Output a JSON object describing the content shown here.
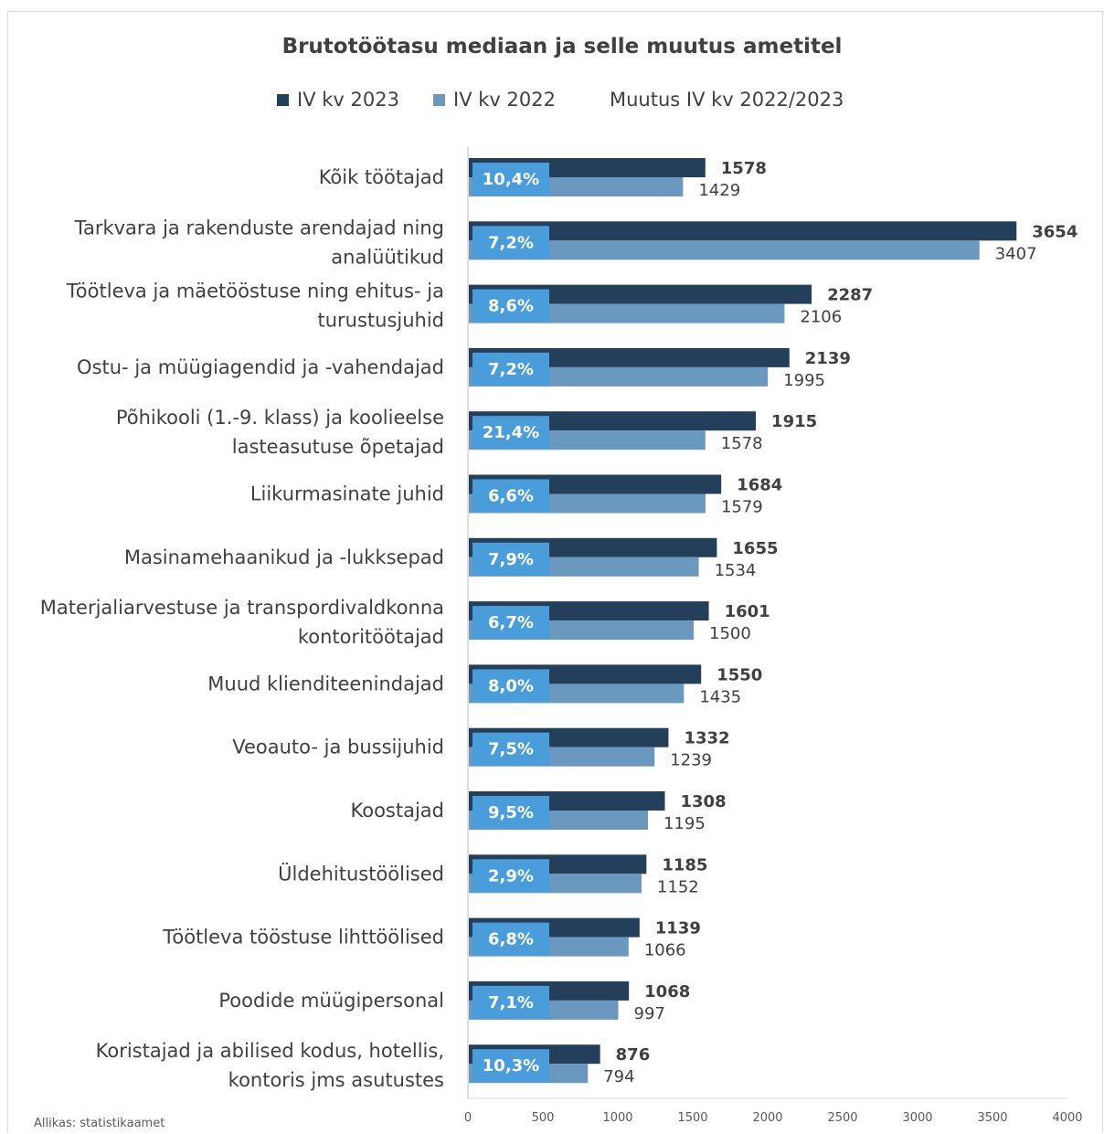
{
  "chart_data": {
    "type": "bar",
    "orientation": "horizontal",
    "title": "Brutotöötasu mediaan ja selle muutus ametitel",
    "legend_position": "top",
    "legend": [
      "IV kv 2023",
      "IV kv 2022",
      "Muutus IV kv 2022/2023"
    ],
    "colors": {
      "iv2023": "#243f59",
      "iv2022": "#6b98bf",
      "change_box": "#4a9ddb"
    },
    "categories": [
      [
        "Kõik töötajad"
      ],
      [
        "Tarkvara ja rakenduste arendajad ning",
        "analüütikud"
      ],
      [
        "Töötleva ja mäetööstuse ning ehitus- ja",
        "turustusjuhid"
      ],
      [
        "Ostu- ja müügiagendid ja -vahendajad"
      ],
      [
        "Põhikooli (1.-9. klass) ja koolieelse",
        "lasteasutuse õpetajad"
      ],
      [
        "Liikurmasinate juhid"
      ],
      [
        "Masinamehaanikud ja -lukksepad"
      ],
      [
        "Materjaliarvestuse ja transpordivaldkonna",
        "kontoritöötajad"
      ],
      [
        "Muud klienditeenindajad"
      ],
      [
        "Veoauto- ja bussijuhid"
      ],
      [
        "Koostajad"
      ],
      [
        "Üldehitustöölised"
      ],
      [
        "Töötleva tööstuse lihttöölised"
      ],
      [
        "Poodide müügipersonal"
      ],
      [
        "Koristajad ja abilised kodus, hotellis,",
        "kontoris jms asutustes"
      ]
    ],
    "series": [
      {
        "name": "IV kv 2023",
        "values": [
          1578,
          3654,
          2287,
          2139,
          1915,
          1684,
          1655,
          1601,
          1550,
          1332,
          1308,
          1185,
          1139,
          1068,
          876
        ]
      },
      {
        "name": "IV kv 2022",
        "values": [
          1429,
          3407,
          2106,
          1995,
          1578,
          1579,
          1534,
          1500,
          1435,
          1239,
          1195,
          1152,
          1066,
          997,
          794
        ]
      },
      {
        "name": "Muutus IV kv 2022/2023",
        "values": [
          "10,4%",
          "7,2%",
          "8,6%",
          "7,2%",
          "21,4%",
          "6,6%",
          "7,9%",
          "6,7%",
          "8,0%",
          "7,5%",
          "9,5%",
          "2,9%",
          "6,8%",
          "7,1%",
          "10,3%"
        ]
      }
    ],
    "xlim": [
      0,
      4000
    ],
    "x_ticks": [
      0,
      500,
      1000,
      1500,
      2000,
      2500,
      3000,
      3500,
      4000
    ],
    "xlabel": "",
    "ylabel": "",
    "grid": false
  },
  "source": "Allikas: statistikaamet"
}
